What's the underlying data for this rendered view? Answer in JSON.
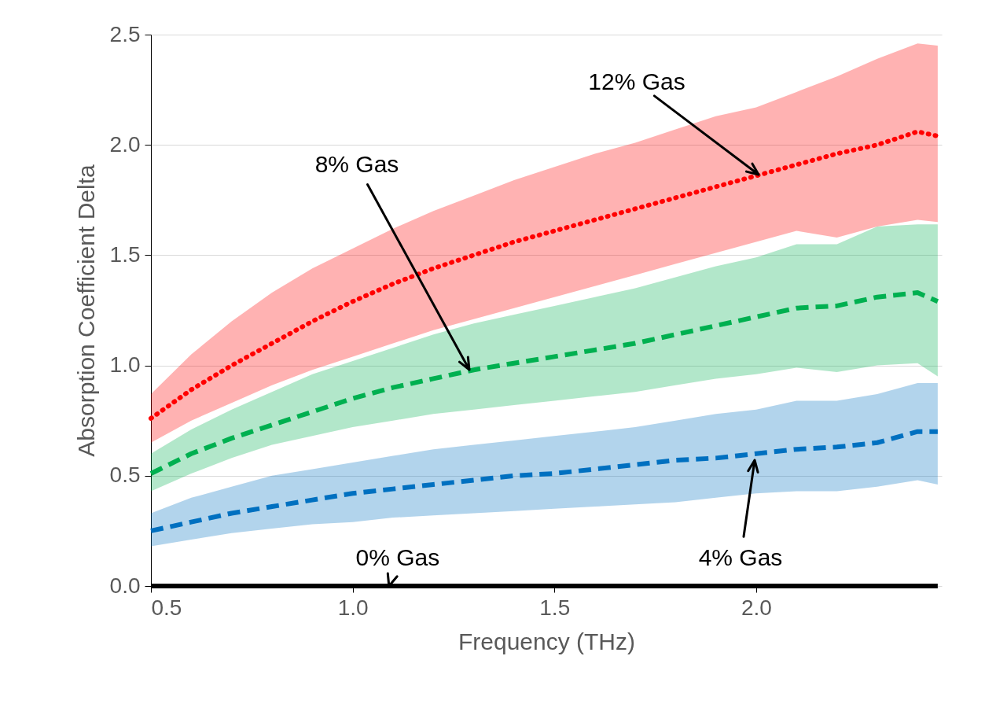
{
  "chart_data": {
    "type": "line",
    "xlabel": "Frequency (THz)",
    "ylabel": "Absorption Coefficient Delta",
    "x": [
      0.5,
      0.6,
      0.7,
      0.8,
      0.9,
      1.0,
      1.1,
      1.2,
      1.3,
      1.4,
      1.5,
      1.6,
      1.7,
      1.8,
      1.9,
      2.0,
      2.1,
      2.2,
      2.3,
      2.4,
      2.45
    ],
    "xlim": [
      0.5,
      2.46
    ],
    "xticks": [
      {
        "value": 0.5,
        "label": "0.5"
      },
      {
        "value": 1.0,
        "label": "1.0"
      },
      {
        "value": 1.5,
        "label": "1.5"
      },
      {
        "value": 2.0,
        "label": "2.0"
      }
    ],
    "ylim": [
      0,
      2.5
    ],
    "yticks": [
      {
        "value": 0,
        "label": "0.0"
      },
      {
        "value": 0.5,
        "label": "0.5"
      },
      {
        "value": 1.0,
        "label": "1.0"
      },
      {
        "value": 1.5,
        "label": "1.5"
      },
      {
        "value": 2.0,
        "label": "2.0"
      },
      {
        "value": 2.5,
        "label": "2.5"
      }
    ],
    "grid": "y",
    "series": [
      {
        "color": "#000000",
        "line_style": "solid",
        "values": [
          0,
          0,
          0,
          0,
          0,
          0,
          0,
          0,
          0,
          0,
          0,
          0,
          0,
          0,
          0,
          0,
          0,
          0,
          0,
          0,
          0
        ]
      },
      {
        "color": "#0070c0",
        "line_style": "dashed",
        "values": [
          0.25,
          0.29,
          0.33,
          0.36,
          0.39,
          0.42,
          0.44,
          0.46,
          0.48,
          0.5,
          0.51,
          0.53,
          0.55,
          0.57,
          0.58,
          0.6,
          0.62,
          0.63,
          0.65,
          0.7,
          0.7
        ],
        "lower": [
          0.18,
          0.21,
          0.24,
          0.26,
          0.28,
          0.29,
          0.31,
          0.32,
          0.33,
          0.34,
          0.35,
          0.36,
          0.37,
          0.38,
          0.4,
          0.42,
          0.43,
          0.43,
          0.45,
          0.48,
          0.46
        ],
        "upper": [
          0.33,
          0.4,
          0.45,
          0.5,
          0.53,
          0.56,
          0.59,
          0.62,
          0.64,
          0.66,
          0.68,
          0.7,
          0.72,
          0.75,
          0.78,
          0.8,
          0.84,
          0.84,
          0.87,
          0.92,
          0.92
        ]
      },
      {
        "color": "#00b050",
        "line_style": "dashed",
        "values": [
          0.51,
          0.6,
          0.67,
          0.73,
          0.79,
          0.85,
          0.9,
          0.94,
          0.98,
          1.01,
          1.04,
          1.07,
          1.1,
          1.14,
          1.18,
          1.22,
          1.26,
          1.27,
          1.31,
          1.33,
          1.29
        ],
        "lower": [
          0.43,
          0.51,
          0.58,
          0.64,
          0.68,
          0.72,
          0.75,
          0.78,
          0.8,
          0.82,
          0.84,
          0.86,
          0.88,
          0.91,
          0.94,
          0.96,
          0.99,
          0.97,
          1.0,
          1.01,
          0.95
        ],
        "upper": [
          0.6,
          0.71,
          0.8,
          0.88,
          0.96,
          1.02,
          1.08,
          1.14,
          1.19,
          1.23,
          1.27,
          1.31,
          1.35,
          1.4,
          1.45,
          1.49,
          1.55,
          1.55,
          1.63,
          1.64,
          1.64
        ]
      },
      {
        "color": "#ff0000",
        "line_style": "dotted",
        "values": [
          0.76,
          0.89,
          1.0,
          1.1,
          1.2,
          1.29,
          1.37,
          1.44,
          1.5,
          1.56,
          1.61,
          1.66,
          1.71,
          1.76,
          1.81,
          1.86,
          1.91,
          1.96,
          2.0,
          2.06,
          2.04
        ],
        "lower": [
          0.65,
          0.75,
          0.83,
          0.91,
          0.98,
          1.04,
          1.1,
          1.16,
          1.21,
          1.26,
          1.31,
          1.36,
          1.41,
          1.46,
          1.51,
          1.56,
          1.61,
          1.58,
          1.63,
          1.66,
          1.65
        ],
        "upper": [
          0.87,
          1.05,
          1.2,
          1.33,
          1.44,
          1.53,
          1.62,
          1.7,
          1.77,
          1.84,
          1.9,
          1.96,
          2.01,
          2.07,
          2.13,
          2.17,
          2.24,
          2.31,
          2.39,
          2.46,
          2.45
        ]
      }
    ],
    "annotations": [
      {
        "text": "0% Gas",
        "x": 1.09,
        "y": 0
      },
      "4% Gas",
      "8% Gas",
      "12% Gas"
    ]
  }
}
